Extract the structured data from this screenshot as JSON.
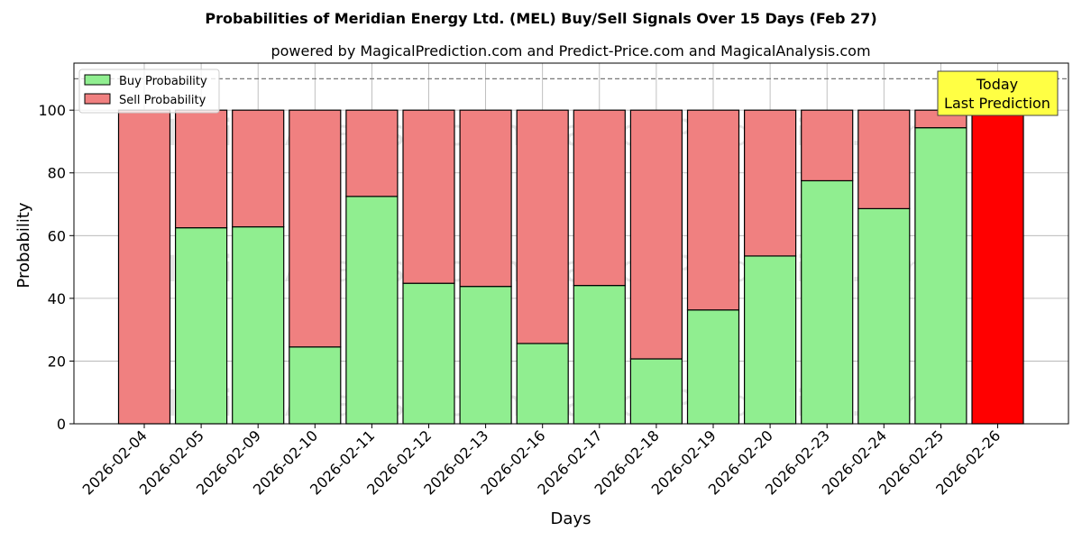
{
  "chart_data": {
    "type": "bar",
    "stacked": true,
    "title": "Probabilities of Meridian Energy Ltd. (MEL) Buy/Sell Signals Over 15 Days (Feb 27)",
    "subtitle": "powered by MagicalPrediction.com and Predict-Price.com and MagicalAnalysis.com",
    "xlabel": "Days",
    "ylabel": "Probability",
    "ylim": [
      0,
      115
    ],
    "yticks": [
      0,
      20,
      40,
      60,
      80,
      100
    ],
    "grid": true,
    "legend_position": "top-left",
    "reference_line": 110,
    "categories": [
      "2026-02-04",
      "2026-02-05",
      "2026-02-09",
      "2026-02-10",
      "2026-02-11",
      "2026-02-12",
      "2026-02-13",
      "2026-02-16",
      "2026-02-17",
      "2026-02-18",
      "2026-02-19",
      "2026-02-20",
      "2026-02-23",
      "2026-02-24",
      "2026-02-25",
      "2026-02-26"
    ],
    "series": [
      {
        "name": "Buy Probability",
        "color": "#90ee90",
        "values": [
          0,
          62.5,
          62.8,
          24.5,
          72.5,
          44.8,
          43.8,
          25.6,
          44.1,
          20.7,
          36.3,
          53.5,
          77.5,
          68.6,
          94.4,
          0
        ]
      },
      {
        "name": "Sell Probability",
        "color": "#f08080",
        "values": [
          100,
          37.5,
          37.2,
          75.5,
          27.5,
          55.2,
          56.2,
          74.4,
          55.9,
          79.3,
          63.7,
          46.5,
          22.5,
          31.4,
          5.6,
          100
        ]
      }
    ],
    "highlight": {
      "category": "2026-02-26",
      "color": "#ff0000"
    },
    "annotation": {
      "lines": [
        "Today",
        "Last Prediction"
      ],
      "background": "#ffff44"
    },
    "watermark": "MagicalAnalysis.com     MagicalPrediction.com"
  }
}
